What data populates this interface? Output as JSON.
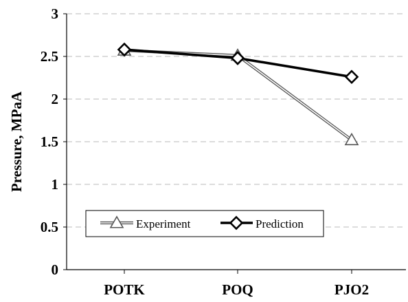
{
  "chart_data": {
    "type": "line",
    "title": "",
    "xlabel": "",
    "ylabel": "Pressure, MPaA",
    "categories": [
      "POTK",
      "POQ",
      "PJO2"
    ],
    "ylim": [
      0,
      3
    ],
    "yticks": [
      "0",
      "0.5",
      "1",
      "1.5",
      "2",
      "2.5",
      "3"
    ],
    "grid": "horizontal dashed",
    "legend_position": "bottom-left inside plot",
    "series": [
      {
        "name": "Experiment",
        "values": [
          2.57,
          2.51,
          1.52
        ],
        "marker": "triangle",
        "line_style": "double",
        "color": "#555555"
      },
      {
        "name": "Prediction",
        "values": [
          2.58,
          2.48,
          2.26
        ],
        "marker": "diamond",
        "line_style": "solid-thick",
        "color": "#000000"
      }
    ]
  }
}
